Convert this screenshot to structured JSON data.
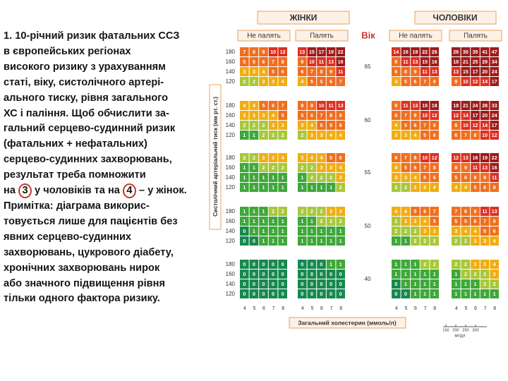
{
  "text": {
    "lines": [
      "1. 10-річний ризик фатальних ССЗ",
      "в європейських регіонах",
      "високого ризику з урахуванням",
      "статі, віку, систолічного артері-",
      "ального тиску, рівня загального",
      "ХС і паління. Щоб обчислити за-",
      "гальний серцево-судинний ризик",
      "(фатальних + нефатальних)",
      "серцево-судинних захворювань,",
      "результат треба помножити",
      [
        "на ",
        "3",
        " у чоловіків та на ",
        "4",
        " – у жінок."
      ],
      "Примітка: діаграма викорис-",
      "товується лише для пацієнтів без",
      "явних серцево-судинних",
      "захворювань, цукрового діабету,",
      "хронічних захворювань нирок",
      "або значного підвищення рівня",
      "тільки одного фактора ризику."
    ]
  },
  "chart": {
    "women": "ЖІНКИ",
    "men": "ЧОЛОВІКИ",
    "non_smoker": "Не палять",
    "smoker": "Палять",
    "age_label": "Вік",
    "y_label": "Систолічний артеріальний тиск (мм рт. ст.)",
    "x_label": "Загальний холестерин (ммоль/л)",
    "bp": [
      180,
      160,
      140,
      120
    ],
    "ages": [
      65,
      60,
      55,
      50,
      40
    ],
    "chol": [
      4,
      5,
      6,
      7,
      8
    ],
    "mgdl": {
      "ticks": [
        150,
        200,
        250,
        300
      ],
      "unit": "мг/дл"
    },
    "panels": [
      [
        [
          [
            7,
            8,
            9,
            10,
            12
          ],
          [
            5,
            5,
            6,
            7,
            8
          ],
          [
            3,
            3,
            4,
            5,
            6
          ],
          [
            2,
            2,
            3,
            3,
            4
          ]
        ],
        [
          [
            4,
            4,
            5,
            6,
            7
          ],
          [
            3,
            3,
            3,
            4,
            5
          ],
          [
            2,
            2,
            2,
            3,
            3
          ],
          [
            1,
            1,
            2,
            2,
            2
          ]
        ],
        [
          [
            2,
            2,
            3,
            3,
            4
          ],
          [
            1,
            1,
            2,
            2,
            2
          ],
          [
            1,
            1,
            1,
            1,
            1
          ],
          [
            1,
            1,
            1,
            1,
            1
          ]
        ],
        [
          [
            1,
            1,
            1,
            2,
            2
          ],
          [
            1,
            1,
            1,
            1,
            1
          ],
          [
            0,
            1,
            1,
            1,
            1
          ],
          [
            0,
            0,
            1,
            1,
            1
          ]
        ],
        [
          [
            0,
            0,
            0,
            0,
            0
          ],
          [
            0,
            0,
            0,
            0,
            0
          ],
          [
            0,
            0,
            0,
            0,
            0
          ],
          [
            0,
            0,
            0,
            0,
            0
          ]
        ]
      ],
      [
        [
          [
            13,
            15,
            17,
            19,
            22
          ],
          [
            9,
            10,
            11,
            13,
            16
          ],
          [
            6,
            7,
            8,
            9,
            11
          ],
          [
            4,
            5,
            5,
            6,
            7
          ]
        ],
        [
          [
            8,
            9,
            10,
            11,
            13
          ],
          [
            5,
            6,
            7,
            8,
            9
          ],
          [
            3,
            4,
            5,
            5,
            6
          ],
          [
            2,
            3,
            3,
            4,
            4
          ]
        ],
        [
          [
            3,
            4,
            4,
            5,
            6
          ],
          [
            2,
            2,
            3,
            3,
            4
          ],
          [
            1,
            2,
            2,
            2,
            3
          ],
          [
            1,
            1,
            1,
            1,
            2
          ]
        ],
        [
          [
            2,
            2,
            2,
            3,
            3
          ],
          [
            1,
            1,
            2,
            2,
            2
          ],
          [
            1,
            1,
            1,
            1,
            1
          ],
          [
            1,
            1,
            1,
            1,
            1
          ]
        ],
        [
          [
            0,
            0,
            0,
            1,
            1
          ],
          [
            0,
            0,
            0,
            0,
            0
          ],
          [
            0,
            0,
            0,
            0,
            0
          ],
          [
            0,
            0,
            0,
            0,
            0
          ]
        ]
      ],
      [
        [
          [
            14,
            16,
            19,
            22,
            26
          ],
          [
            9,
            11,
            13,
            15,
            16
          ],
          [
            6,
            8,
            9,
            11,
            13
          ],
          [
            4,
            5,
            6,
            7,
            9
          ]
        ],
        [
          [
            9,
            11,
            13,
            15,
            18
          ],
          [
            6,
            7,
            9,
            10,
            12
          ],
          [
            4,
            5,
            6,
            7,
            9
          ],
          [
            3,
            3,
            4,
            5,
            6
          ]
        ],
        [
          [
            6,
            7,
            8,
            10,
            12
          ],
          [
            4,
            5,
            6,
            7,
            8
          ],
          [
            3,
            3,
            4,
            5,
            6
          ],
          [
            2,
            2,
            3,
            3,
            4
          ]
        ],
        [
          [
            4,
            4,
            5,
            6,
            7
          ],
          [
            2,
            3,
            3,
            4,
            5
          ],
          [
            2,
            2,
            2,
            3,
            3
          ],
          [
            1,
            1,
            2,
            2,
            2
          ]
        ],
        [
          [
            1,
            1,
            1,
            2,
            2
          ],
          [
            1,
            1,
            1,
            1,
            1
          ],
          [
            0,
            1,
            1,
            1,
            1
          ],
          [
            0,
            0,
            1,
            1,
            1
          ]
        ]
      ],
      [
        [
          [
            26,
            30,
            35,
            41,
            47
          ],
          [
            18,
            21,
            25,
            29,
            34
          ],
          [
            13,
            15,
            17,
            20,
            24
          ],
          [
            9,
            10,
            12,
            14,
            17
          ]
        ],
        [
          [
            18,
            21,
            24,
            28,
            33
          ],
          [
            12,
            14,
            17,
            20,
            24
          ],
          [
            8,
            10,
            12,
            14,
            17
          ],
          [
            6,
            7,
            8,
            10,
            12
          ]
        ],
        [
          [
            12,
            13,
            16,
            19,
            22
          ],
          [
            8,
            9,
            11,
            13,
            16
          ],
          [
            5,
            6,
            8,
            9,
            11
          ],
          [
            4,
            4,
            5,
            6,
            8
          ]
        ],
        [
          [
            7,
            8,
            9,
            11,
            13
          ],
          [
            5,
            5,
            6,
            7,
            9
          ],
          [
            3,
            4,
            4,
            5,
            6
          ],
          [
            2,
            2,
            3,
            3,
            4
          ]
        ],
        [
          [
            2,
            2,
            3,
            3,
            4
          ],
          [
            1,
            2,
            2,
            2,
            3
          ],
          [
            1,
            1,
            1,
            2,
            2
          ],
          [
            1,
            1,
            1,
            1,
            1
          ]
        ]
      ]
    ]
  }
}
